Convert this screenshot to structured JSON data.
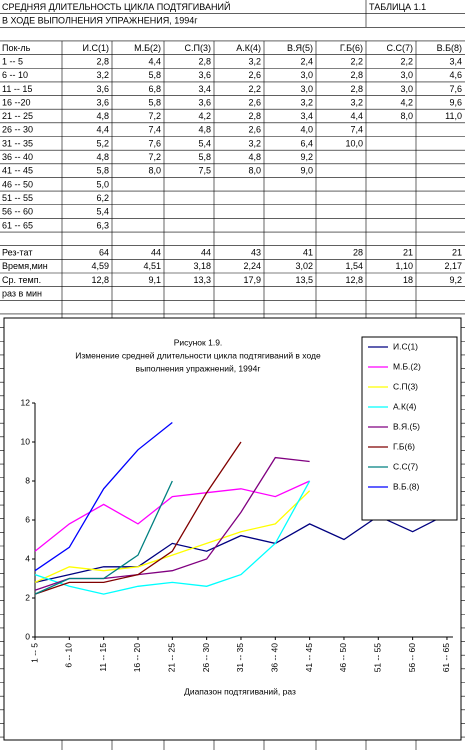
{
  "table": {
    "title": "СРЕДНЯЯ ДЛИТЕЛЬНОСТЬ ЦИКЛА ПОДТЯГИВАНИЙ",
    "subtitle": "В ХОДЕ ВЫПОЛНЕНИЯ УПРАЖНЕНИЯ, 1994г",
    "label": "ТАБЛИЦА 1.1",
    "header": [
      "Пок-ль",
      "И.С(1)",
      "М.Б(2)",
      "С.П(3)",
      "А.К(4)",
      "В.Я(5)",
      "Г.Б(6)",
      "С.С(7)",
      "В.Б(8)"
    ],
    "rows": [
      [
        "1  --  5",
        "2,8",
        "4,4",
        "2,8",
        "3,2",
        "2,4",
        "2,2",
        "2,2",
        "3,4"
      ],
      [
        "6  -- 10",
        "3,2",
        "5,8",
        "3,6",
        "2,6",
        "3,0",
        "2,8",
        "3,0",
        "4,6"
      ],
      [
        "11 -- 15",
        "3,6",
        "6,8",
        "3,4",
        "2,2",
        "3,0",
        "2,8",
        "3,0",
        "7,6"
      ],
      [
        "16 --20",
        "3,6",
        "5,8",
        "3,6",
        "2,6",
        "3,2",
        "3,2",
        "4,2",
        "9,6"
      ],
      [
        "21 -- 25",
        "4,8",
        "7,2",
        "4,2",
        "2,8",
        "3,4",
        "4,4",
        "8,0",
        "11,0"
      ],
      [
        "26 -- 30",
        "4,4",
        "7,4",
        "4,8",
        "2,6",
        "4,0",
        "7,4"
      ],
      [
        "31 -- 35",
        "5,2",
        "7,6",
        "5,4",
        "3,2",
        "6,4",
        "10,0"
      ],
      [
        "36 -- 40",
        "4,8",
        "7,2",
        "5,8",
        "4,8",
        "9,2"
      ],
      [
        "41 -- 45",
        "5,8",
        "8,0",
        "7,5",
        "8,0",
        "9,0"
      ],
      [
        "46 -- 50",
        "5,0"
      ],
      [
        "51 -- 55",
        "6,2"
      ],
      [
        "56 -- 60",
        "5,4"
      ],
      [
        "61 -- 65",
        "6,3"
      ]
    ],
    "footer_rows": [
      [
        "Рез-тат",
        "64",
        "44",
        "44",
        "43",
        "41",
        "28",
        "21",
        "21"
      ],
      [
        "Время,мин",
        "4,59",
        "4,51",
        "3,18",
        "2,24",
        "3,02",
        "1,54",
        "1,10",
        "2,17"
      ],
      [
        "Ср. темп.",
        "12,8",
        "9,1",
        "13,3",
        "17,9",
        "13,5",
        "12,8",
        "18",
        "9,2"
      ],
      [
        "раз в мин"
      ]
    ]
  },
  "chart_data": {
    "type": "line",
    "title": [
      "Рисунок 1.9.",
      "Изменение средней длительности цикла подтягиваний в ходе",
      "выполнения упражнений, 1994г"
    ],
    "x_label": "Диапазон подтягиваний, раз",
    "categories": [
      "1 -- 5",
      "6 -- 10",
      "11 -- 15",
      "16 -- 20",
      "21 -- 25",
      "26 -- 30",
      "31 -- 35",
      "36 -- 40",
      "41 -- 45",
      "46 -- 50",
      "51 -- 55",
      "56 -- 60",
      "61 -- 65"
    ],
    "ylim": [
      0,
      12
    ],
    "yticks": [
      0,
      2,
      4,
      6,
      8,
      10,
      12
    ],
    "legend": "right",
    "series": [
      {
        "name": "И.С(1)",
        "color": "#000080",
        "values": [
          2.8,
          3.2,
          3.6,
          3.6,
          4.8,
          4.4,
          5.2,
          4.8,
          5.8,
          5.0,
          6.2,
          5.4,
          6.3
        ]
      },
      {
        "name": "М.Б.(2)",
        "color": "#ff00ff",
        "values": [
          4.4,
          5.8,
          6.8,
          5.8,
          7.2,
          7.4,
          7.6,
          7.2,
          8.0,
          null,
          null,
          null,
          null
        ]
      },
      {
        "name": "С.П(3)",
        "color": "#ffff00",
        "values": [
          2.8,
          3.6,
          3.4,
          3.6,
          4.2,
          4.8,
          5.4,
          5.8,
          7.5,
          null,
          null,
          null,
          null
        ]
      },
      {
        "name": "А.К(4)",
        "color": "#00ffff",
        "values": [
          3.2,
          2.6,
          2.2,
          2.6,
          2.8,
          2.6,
          3.2,
          4.8,
          8.0,
          null,
          null,
          null,
          null
        ]
      },
      {
        "name": "В.Я.(5)",
        "color": "#800080",
        "values": [
          2.4,
          3.0,
          3.0,
          3.2,
          3.4,
          4.0,
          6.4,
          9.2,
          9.0,
          null,
          null,
          null,
          null
        ]
      },
      {
        "name": "Г.Б(6)",
        "color": "#800000",
        "values": [
          2.2,
          2.8,
          2.8,
          3.2,
          4.4,
          7.4,
          10.0,
          null,
          null,
          null,
          null,
          null,
          null
        ]
      },
      {
        "name": "С.С(7)",
        "color": "#008080",
        "values": [
          2.2,
          3.0,
          3.0,
          4.2,
          8.0,
          null,
          null,
          null,
          null,
          null,
          null,
          null,
          null
        ]
      },
      {
        "name": "В.Б.(8)",
        "color": "#0000ff",
        "values": [
          3.4,
          4.6,
          7.6,
          9.6,
          11.0,
          null,
          null,
          null,
          null,
          null,
          null,
          null,
          null
        ]
      }
    ]
  }
}
